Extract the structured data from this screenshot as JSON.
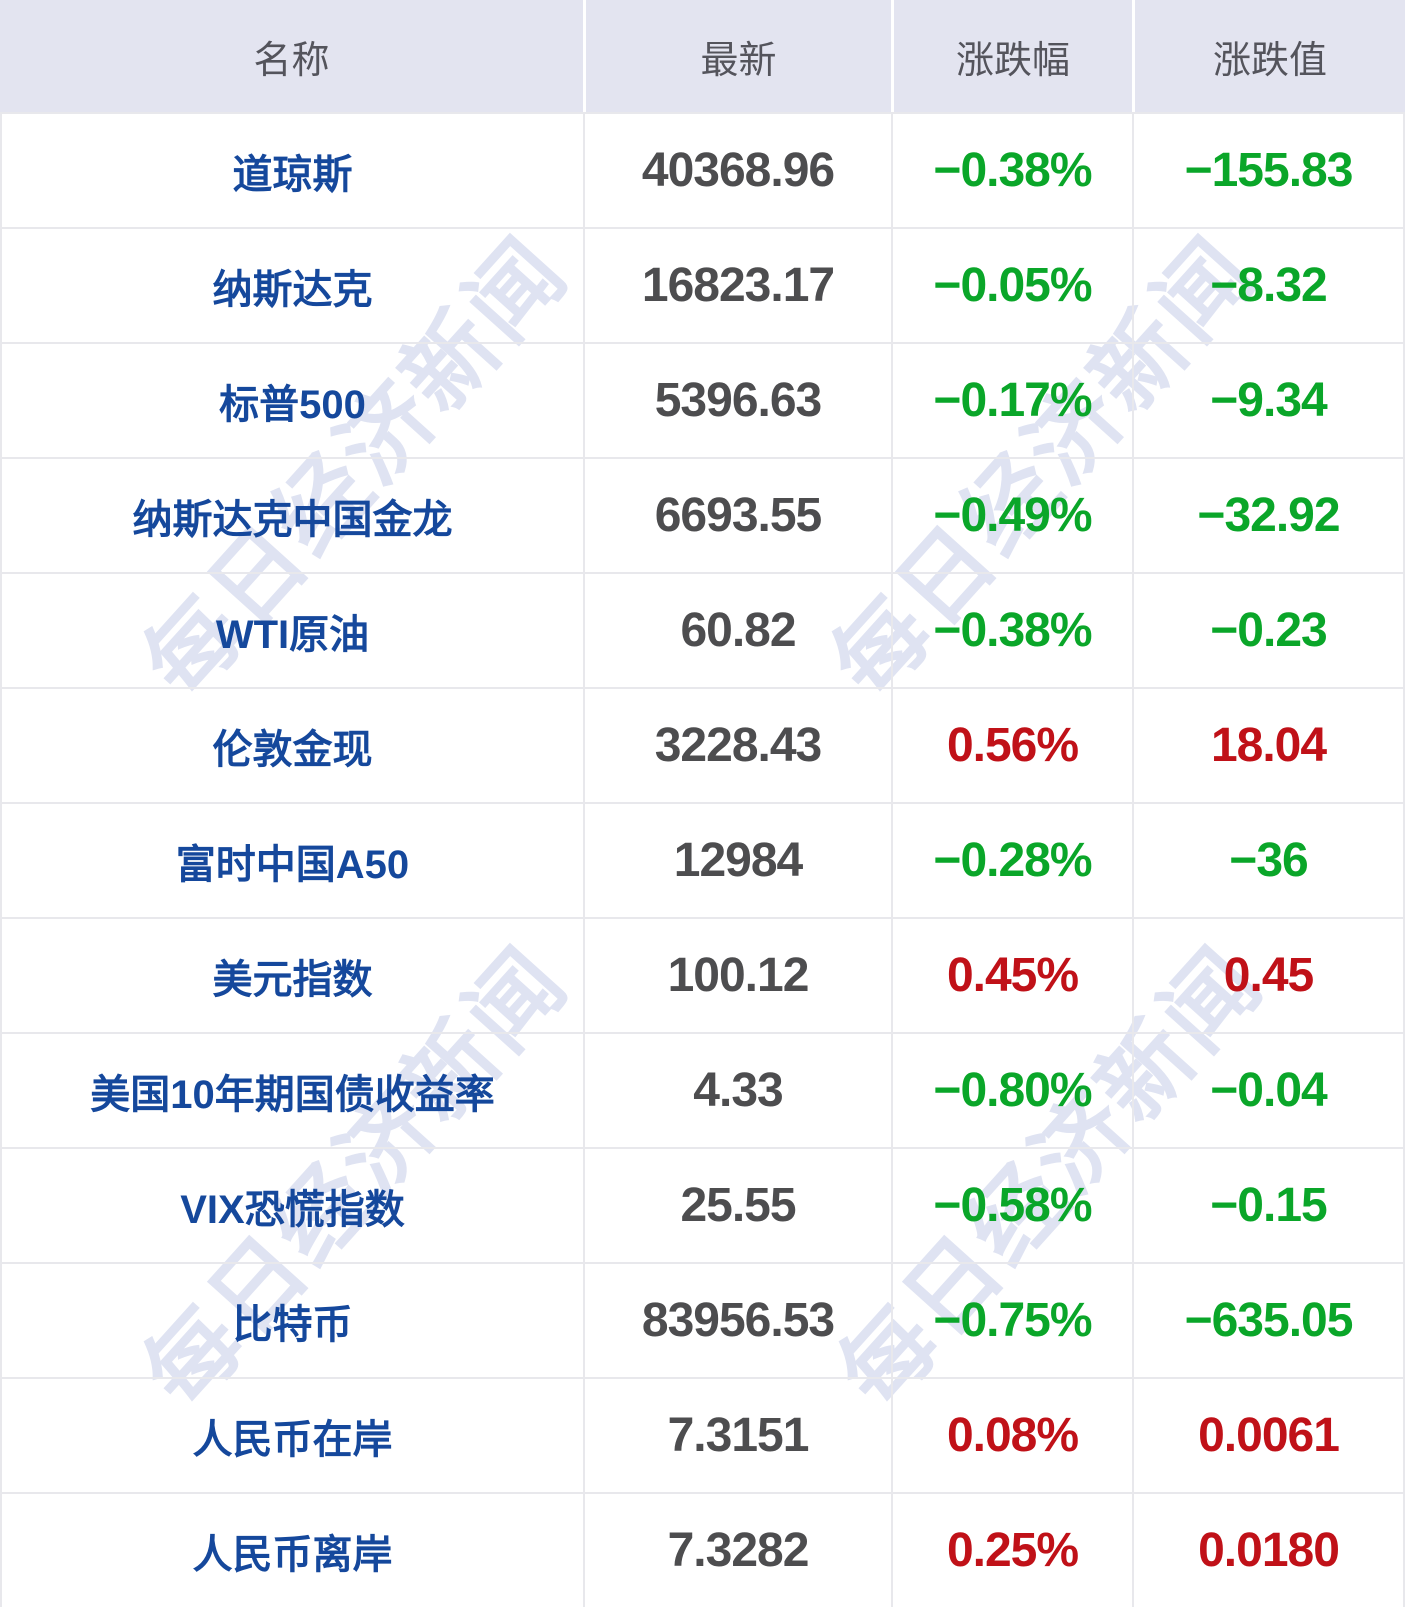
{
  "watermark": {
    "text": "每日经济新闻"
  },
  "colors": {
    "up": "#c01118",
    "down": "#0aa629",
    "name_blue": "#15489c",
    "value_gray": "#4d4d4f",
    "header_bg": "#e3e4f0",
    "header_fg": "#54545c",
    "gridline": "#e8e8ec",
    "watermark": "#dfe3f2"
  },
  "chart_data": {
    "type": "table",
    "columns": [
      {
        "key": "name",
        "label": "名称"
      },
      {
        "key": "latest",
        "label": "最新"
      },
      {
        "key": "change_pct",
        "label": "涨跌幅"
      },
      {
        "key": "change_val",
        "label": "涨跌值"
      }
    ],
    "rows": [
      {
        "name": "道琼斯",
        "latest": "40368.96",
        "change_pct": "−0.38%",
        "change_val": "−155.83"
      },
      {
        "name": "纳斯达克",
        "latest": "16823.17",
        "change_pct": "−0.05%",
        "change_val": "−8.32"
      },
      {
        "name": "标普500",
        "latest": "5396.63",
        "change_pct": "−0.17%",
        "change_val": "−9.34"
      },
      {
        "name": "纳斯达克中国金龙",
        "latest": "6693.55",
        "change_pct": "−0.49%",
        "change_val": "−32.92"
      },
      {
        "name": "WTI原油",
        "latest": "60.82",
        "change_pct": "−0.38%",
        "change_val": "−0.23"
      },
      {
        "name": "伦敦金现",
        "latest": "3228.43",
        "change_pct": "0.56%",
        "change_val": "18.04"
      },
      {
        "name": "富时中国A50",
        "latest": "12984",
        "change_pct": "−0.28%",
        "change_val": "−36"
      },
      {
        "name": "美元指数",
        "latest": "100.12",
        "change_pct": "0.45%",
        "change_val": "0.45"
      },
      {
        "name": "美国10年期国债收益率",
        "latest": "4.33",
        "change_pct": "−0.80%",
        "change_val": "−0.04"
      },
      {
        "name": "VIX恐慌指数",
        "latest": "25.55",
        "change_pct": "−0.58%",
        "change_val": "−0.15"
      },
      {
        "name": "比特币",
        "latest": "83956.53",
        "change_pct": "−0.75%",
        "change_val": "−635.05"
      },
      {
        "name": "人民币在岸",
        "latest": "7.3151",
        "change_pct": "0.08%",
        "change_val": "0.0061"
      },
      {
        "name": "人民币离岸",
        "latest": "7.3282",
        "change_pct": "0.25%",
        "change_val": "0.0180"
      }
    ]
  }
}
